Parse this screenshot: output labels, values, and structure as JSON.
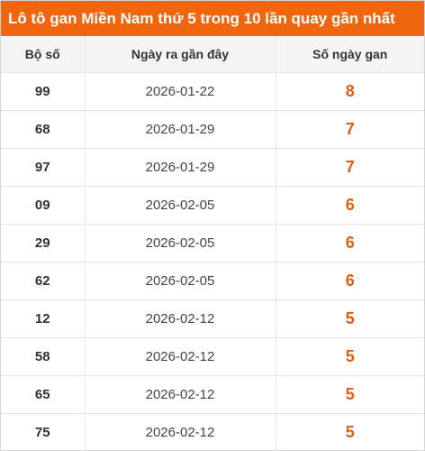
{
  "title": "Lô tô gan Miền Nam thứ 5 trong 10 lần quay gần nhất",
  "colors": {
    "header_bg": "#f0660f",
    "gan_value": "#e35d0c"
  },
  "table": {
    "headers": [
      "Bộ số",
      "Ngày ra gần đây",
      "Số ngày gan"
    ],
    "rows": [
      {
        "number": "99",
        "date": "2026-01-22",
        "days": "8"
      },
      {
        "number": "68",
        "date": "2026-01-29",
        "days": "7"
      },
      {
        "number": "97",
        "date": "2026-01-29",
        "days": "7"
      },
      {
        "number": "09",
        "date": "2026-02-05",
        "days": "6"
      },
      {
        "number": "29",
        "date": "2026-02-05",
        "days": "6"
      },
      {
        "number": "62",
        "date": "2026-02-05",
        "days": "6"
      },
      {
        "number": "12",
        "date": "2026-02-12",
        "days": "5"
      },
      {
        "number": "58",
        "date": "2026-02-12",
        "days": "5"
      },
      {
        "number": "65",
        "date": "2026-02-12",
        "days": "5"
      },
      {
        "number": "75",
        "date": "2026-02-12",
        "days": "5"
      }
    ]
  }
}
